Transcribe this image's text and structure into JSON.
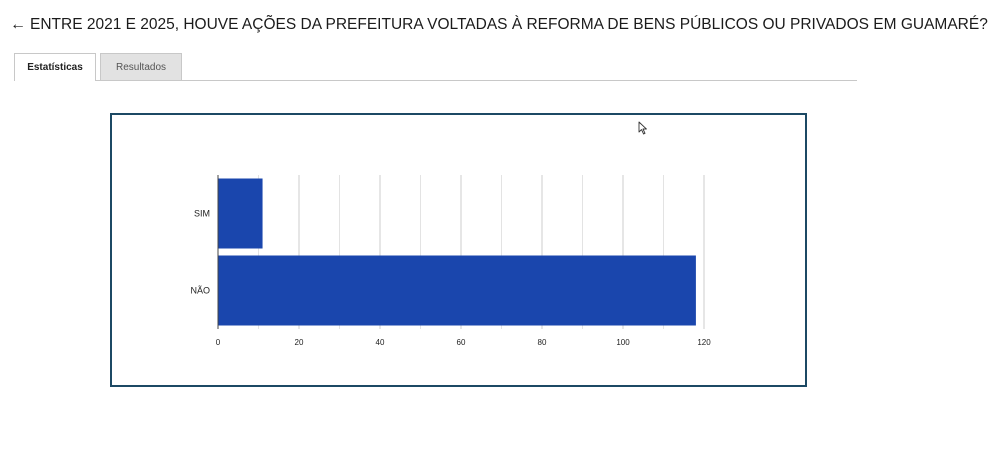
{
  "header": {
    "back_icon": "←",
    "title": "ENTRE 2021 E 2025, HOUVE AÇÕES DA PREFEITURA VOLTADAS À REFORMA DE BENS PÚBLICOS OU PRIVADOS EM GUAMARÉ?"
  },
  "tabs": [
    {
      "label": "Estatísticas",
      "active": true
    },
    {
      "label": "Resultados",
      "active": false
    }
  ],
  "chart_data": {
    "type": "bar",
    "orientation": "horizontal",
    "categories": [
      "SIM",
      "NÃO"
    ],
    "values": [
      11,
      118
    ],
    "xlim": [
      0,
      120
    ],
    "xticks": [
      0,
      20,
      40,
      60,
      80,
      100,
      120
    ],
    "grid": true,
    "bar_color": "#1a46ad",
    "title": "",
    "xlabel": "",
    "ylabel": ""
  },
  "colors": {
    "frame": "#1c4964",
    "grid": "#cccccc"
  },
  "icons": {
    "cursor": "mouse-cursor-icon"
  }
}
